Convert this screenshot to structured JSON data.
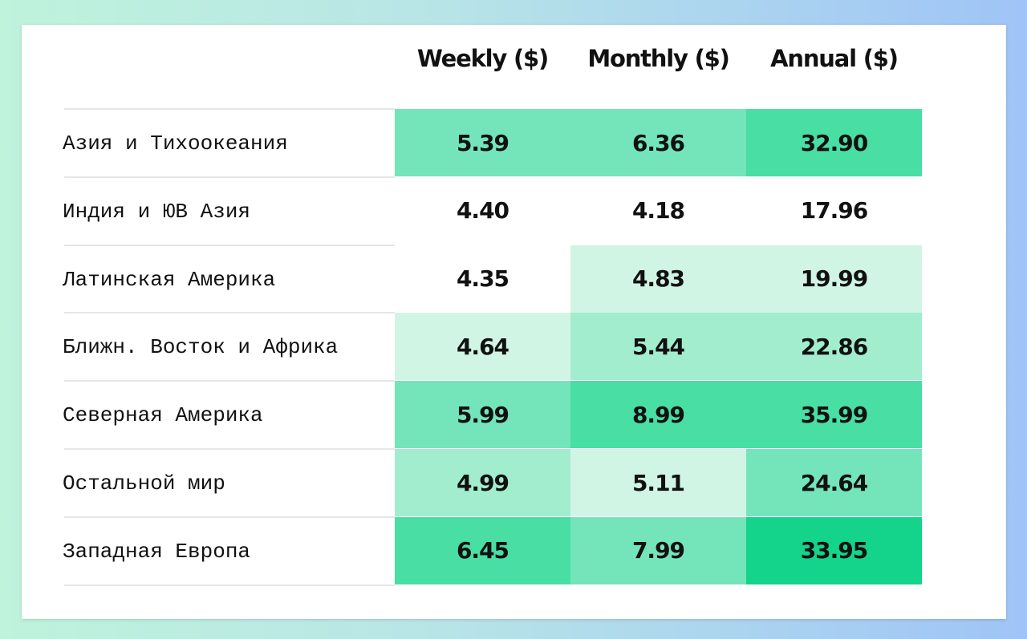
{
  "table": {
    "columns": [
      "Weekly ($)",
      "Monthly ($)",
      "Annual ($)"
    ],
    "rows": [
      {
        "label": "Азия и Тихоокеания",
        "values": [
          "5.39",
          "6.36",
          "32.90"
        ],
        "colors": [
          "#74e5ba",
          "#74e5ba",
          "#48dea4"
        ]
      },
      {
        "label": "Индия и ЮВ Азия",
        "values": [
          "4.40",
          "4.18",
          "17.96"
        ],
        "colors": [
          "#ffffff",
          "#ffffff",
          "#ffffff"
        ]
      },
      {
        "label": "Латинская Америка",
        "values": [
          "4.35",
          "4.83",
          "19.99"
        ],
        "colors": [
          "#ffffff",
          "#d1f5e4",
          "#d1f5e4"
        ]
      },
      {
        "label": "Ближн. Восток и Африка",
        "values": [
          "4.64",
          "5.44",
          "22.86"
        ],
        "colors": [
          "#d1f5e4",
          "#a3edcf",
          "#a3edcf"
        ]
      },
      {
        "label": "Северная Америка",
        "values": [
          "5.99",
          "8.99",
          "35.99"
        ],
        "colors": [
          "#74e5ba",
          "#48dea4",
          "#48dea4"
        ]
      },
      {
        "label": "Остальной мир",
        "values": [
          "4.99",
          "5.11",
          "24.64"
        ],
        "colors": [
          "#a3edcf",
          "#d1f5e4",
          "#74e5ba"
        ]
      },
      {
        "label": "Западная Европа",
        "values": [
          "6.45",
          "7.99",
          "33.95"
        ],
        "colors": [
          "#48dea4",
          "#74e5ba",
          "#14d38a"
        ]
      }
    ]
  }
}
